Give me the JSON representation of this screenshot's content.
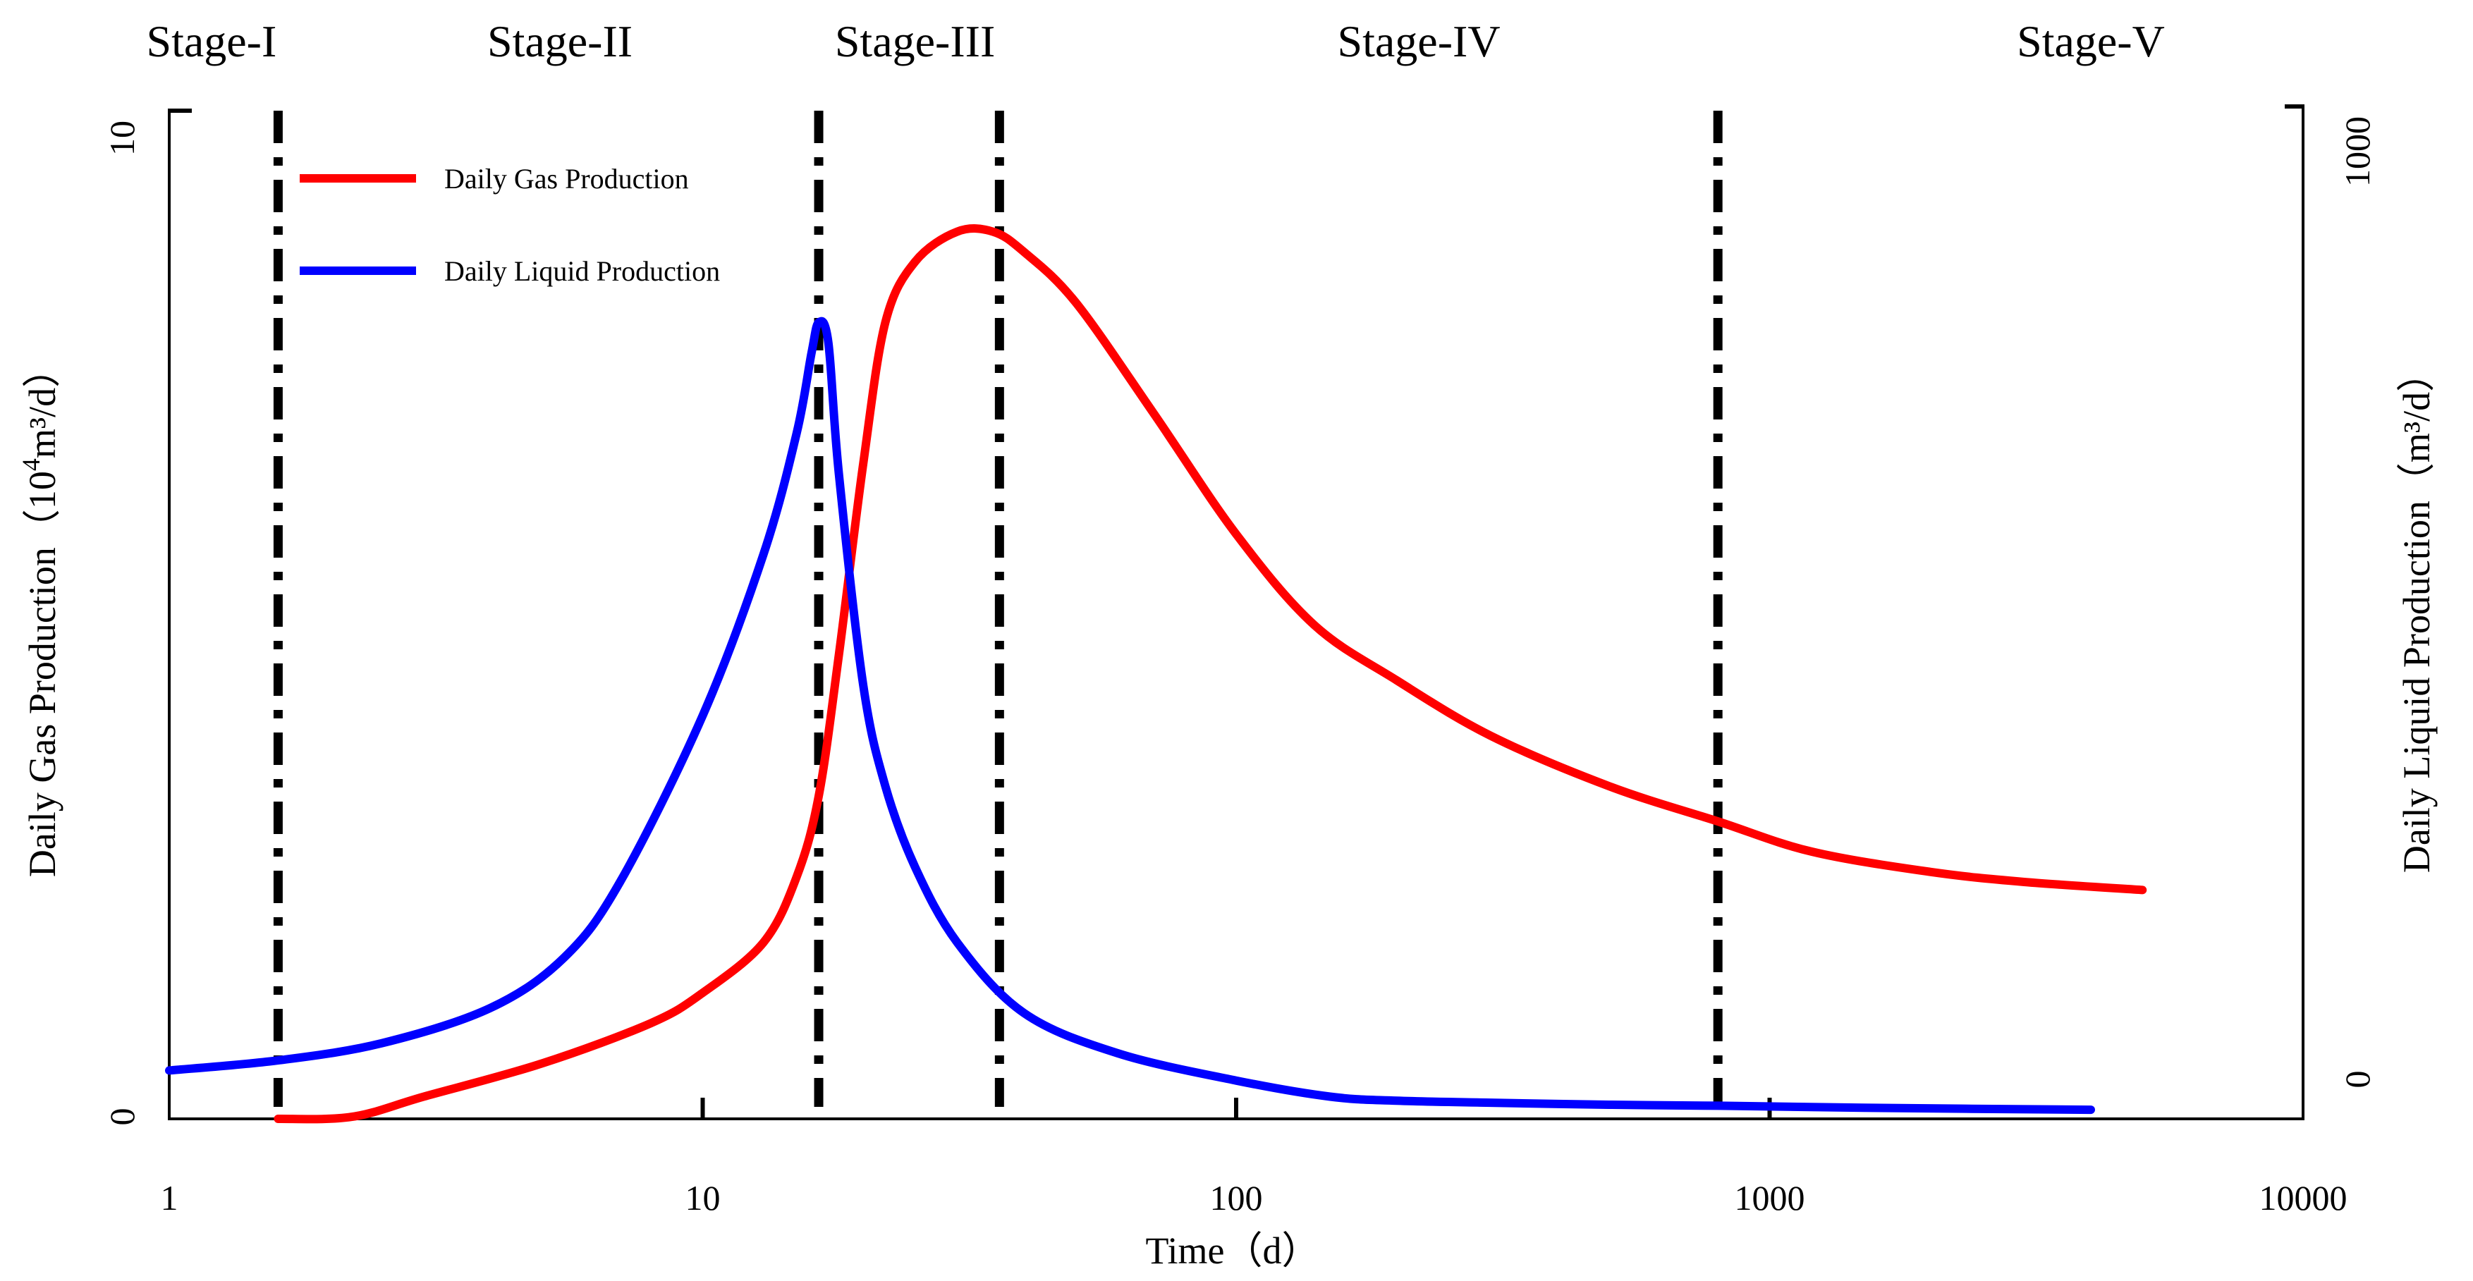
{
  "chart_data": {
    "type": "line",
    "x_scale": "log",
    "xlim": [
      1,
      10000
    ],
    "xticks": [
      "1",
      "10",
      "100",
      "1000",
      "10000"
    ],
    "xlabel": "Time（d）",
    "y_left": {
      "label": "Daily Gas Production（",
      "label_unit_base": "10",
      "label_unit_sup": "4",
      "label_unit_rest": "m³/d）",
      "ylim": [
        0,
        10
      ],
      "ticks": [
        "0",
        "10"
      ]
    },
    "y_right": {
      "label": "Daily Liquid Production（m³/d）",
      "ylim": [
        0,
        1000
      ],
      "ticks": [
        "0",
        "1000"
      ]
    },
    "stages": [
      {
        "label": "Stage-I",
        "center_x": 1.2
      },
      {
        "label": "Stage-II",
        "center_x": 5.4
      },
      {
        "label": "Stage-III",
        "center_x": 25
      },
      {
        "label": "Stage-IV",
        "center_x": 220
      },
      {
        "label": "Stage-V",
        "center_x": 4000
      }
    ],
    "stage_boundaries_x": [
      1.6,
      16.5,
      36,
      800
    ],
    "legend_position": "top-left",
    "series": [
      {
        "name": "Daily Gas Production",
        "axis": "left",
        "color": "#ff0000",
        "x": [
          1.6,
          2.2,
          3,
          5,
          8,
          10,
          13,
          15,
          16.5,
          18,
          20,
          22,
          25,
          30,
          35,
          40,
          50,
          70,
          100,
          140,
          200,
          300,
          500,
          800,
          1200,
          2000,
          3000,
          5000
        ],
        "y": [
          0,
          0.02,
          0.22,
          0.55,
          0.95,
          1.25,
          1.75,
          2.4,
          3.2,
          4.6,
          6.5,
          7.9,
          8.5,
          8.8,
          8.8,
          8.6,
          8.1,
          7,
          5.8,
          4.9,
          4.35,
          3.8,
          3.3,
          2.95,
          2.65,
          2.45,
          2.35,
          2.27
        ]
      },
      {
        "name": "Daily Liquid Production",
        "axis": "right",
        "color": "#0000ff",
        "x": [
          1,
          1.6,
          2.5,
          4,
          5.5,
          7,
          10,
          13,
          15,
          16,
          16.5,
          17.2,
          18,
          20,
          22,
          25,
          30,
          40,
          60,
          100,
          150,
          200,
          300,
          500,
          800,
          1500,
          4000
        ],
        "y": [
          48,
          58,
          75,
          110,
          160,
          235,
          400,
          560,
          680,
          760,
          790,
          770,
          640,
          430,
          330,
          250,
          175,
          105,
          65,
          38,
          22,
          18,
          16,
          14,
          13,
          11,
          9
        ]
      }
    ]
  }
}
